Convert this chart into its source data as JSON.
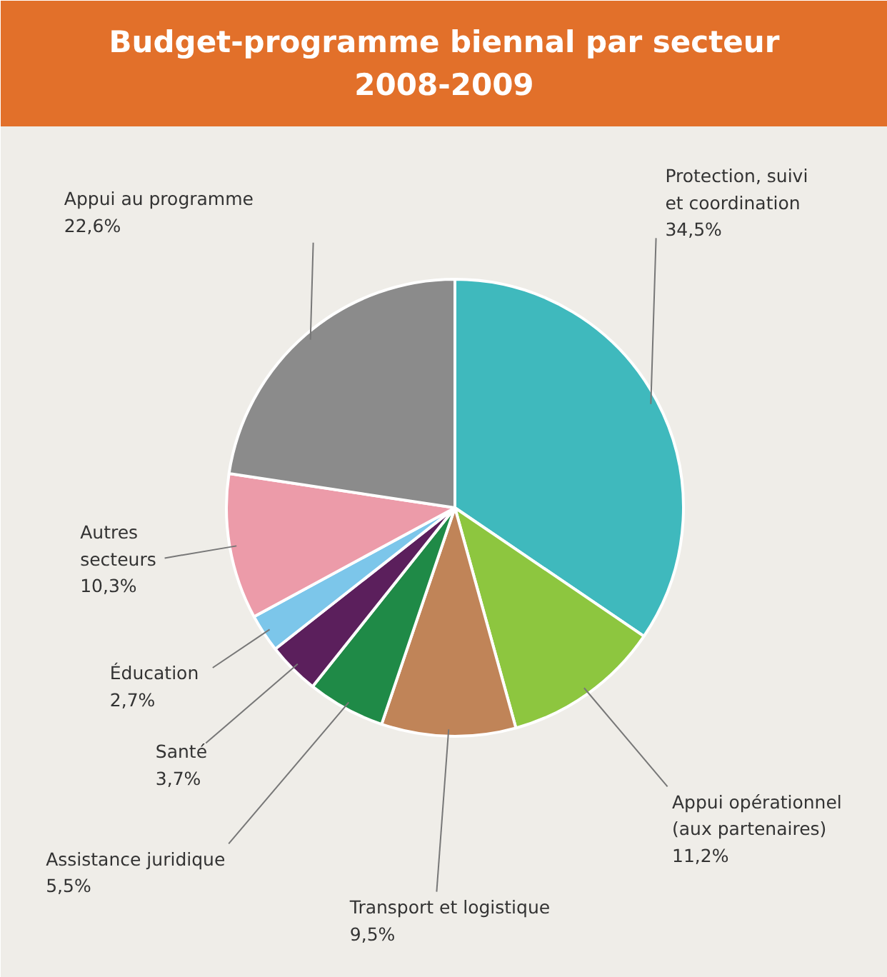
{
  "chart_data": {
    "type": "pie",
    "title": "Budget-programme biennal par secteur\n2008-2009",
    "categories": [
      "Protection, suivi\net coordination",
      "Appui opérationnel\n(aux partenaires)",
      "Transport et logistique",
      "Assistance juridique",
      "Santé",
      "Éducation",
      "Autres\nsecteurs",
      "Appui au programme"
    ],
    "values": [
      34.5,
      11.2,
      9.5,
      5.5,
      3.7,
      2.7,
      10.3,
      22.6
    ],
    "value_labels": [
      "34,5%",
      "11,2%",
      "9,5%",
      "5,5%",
      "3,7%",
      "2,7%",
      "10,3%",
      "22,6%"
    ],
    "colors": [
      "#3fb9bd",
      "#8dc63f",
      "#c08458",
      "#1f8a47",
      "#5b1f5c",
      "#7cc6ea",
      "#ec9ba9",
      "#8b8b8b"
    ]
  }
}
